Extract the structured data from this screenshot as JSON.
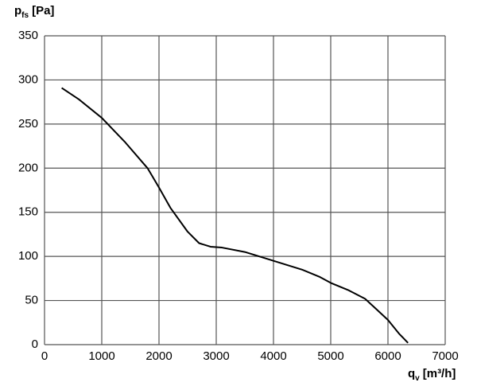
{
  "chart_data": {
    "type": "line",
    "ylabel": "p",
    "ylabel_sub": "fs",
    "ylabel_unit": "[Pa]",
    "xlabel": "q",
    "xlabel_sub": "v",
    "xlabel_unit": "[m³/h]",
    "x": [
      300,
      600,
      1000,
      1400,
      1800,
      2000,
      2200,
      2500,
      2700,
      2900,
      3100,
      3500,
      4000,
      4500,
      4800,
      5000,
      5300,
      5600,
      5800,
      6000,
      6200,
      6350
    ],
    "series": [
      {
        "color": "#000000",
        "values": [
          291,
          278,
          257,
          230,
          200,
          178,
          155,
          128,
          115,
          111,
          110,
          105,
          95,
          85,
          77,
          70,
          62,
          52,
          40,
          28,
          12,
          2
        ]
      }
    ],
    "xlim": [
      0,
      7000
    ],
    "xticks": [
      0,
      1000,
      2000,
      3000,
      4000,
      5000,
      6000,
      7000
    ],
    "ylim": [
      0,
      350
    ],
    "yticks": [
      0,
      50,
      100,
      150,
      200,
      250,
      300,
      350
    ],
    "grid": true
  }
}
